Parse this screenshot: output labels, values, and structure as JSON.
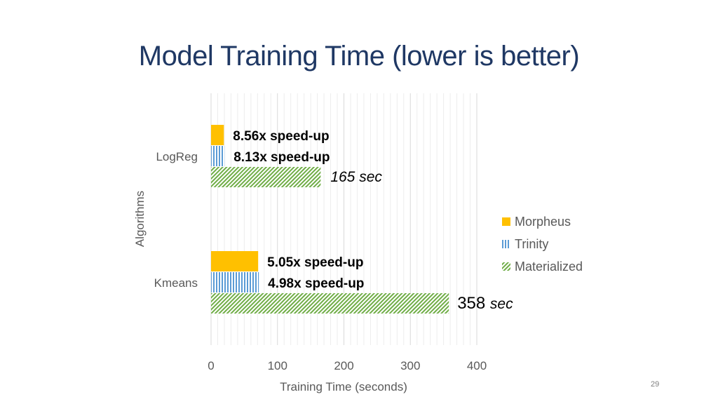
{
  "slide": {
    "title": "Model Training Time (lower is better)",
    "number": "29"
  },
  "chart_data": {
    "type": "bar",
    "orientation": "horizontal",
    "categories": [
      "LogReg",
      "Kmeans"
    ],
    "series": [
      {
        "name": "Morpheus",
        "values": [
          19.3,
          70.9
        ],
        "color": "#ffc000",
        "pattern": "solid"
      },
      {
        "name": "Trinity",
        "values": [
          20.3,
          71.9
        ],
        "color": "#5b9bd5",
        "pattern": "vertical-stripes"
      },
      {
        "name": "Materialized",
        "values": [
          165,
          358
        ],
        "color": "#70ad47",
        "pattern": "diagonal-hatch"
      }
    ],
    "annotations": [
      {
        "category": "LogReg",
        "series": "Morpheus",
        "text": "8.56x speed-up",
        "style": "bold"
      },
      {
        "category": "LogReg",
        "series": "Trinity",
        "text": "8.13x speed-up",
        "style": "bold"
      },
      {
        "category": "LogReg",
        "series": "Materialized",
        "text": "165 sec",
        "style": "italic"
      },
      {
        "category": "Kmeans",
        "series": "Morpheus",
        "text": "5.05x speed-up",
        "style": "bold"
      },
      {
        "category": "Kmeans",
        "series": "Trinity",
        "text": "4.98x speed-up",
        "style": "bold"
      },
      {
        "category": "Kmeans",
        "series": "Materialized",
        "text_number": "358",
        "text_unit": "sec",
        "style": "mixed"
      }
    ],
    "xlabel": "Training Time (seconds)",
    "ylabel": "Algorithms",
    "xlim": [
      0,
      400
    ],
    "xticks": [
      0,
      100,
      200,
      300,
      400
    ],
    "grid": true,
    "legend_position": "right"
  }
}
